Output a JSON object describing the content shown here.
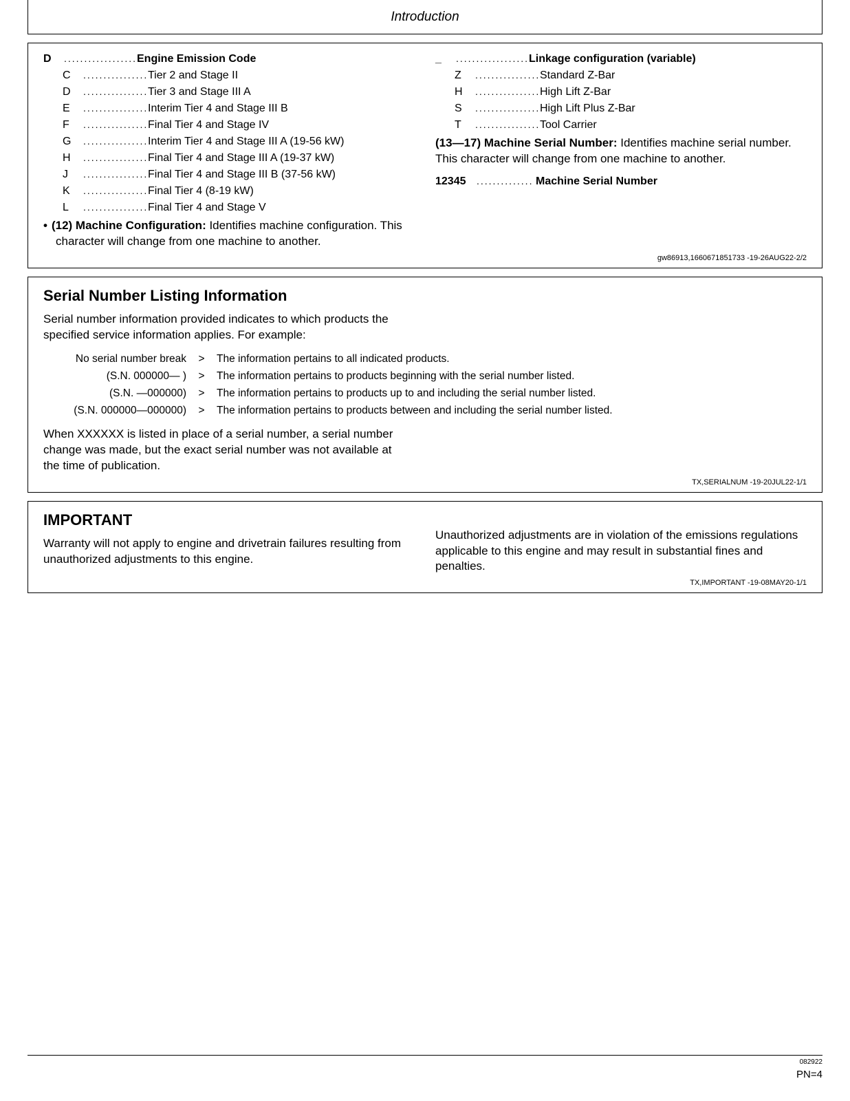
{
  "page": {
    "header": "Introduction",
    "footer_small": "082922",
    "footer_pn": "PN=4"
  },
  "section1": {
    "left": {
      "header": {
        "code": "D",
        "desc": "Engine Emission Code"
      },
      "rows": [
        {
          "code": "C",
          "desc": "Tier 2 and Stage II"
        },
        {
          "code": "D",
          "desc": "Tier 3 and Stage III A"
        },
        {
          "code": "E",
          "desc": "Interim Tier 4 and Stage III B"
        },
        {
          "code": "F",
          "desc": "Final Tier 4 and Stage IV"
        },
        {
          "code": "G",
          "desc": "Interim Tier 4 and Stage III A (19-56 kW)"
        },
        {
          "code": "H",
          "desc": "Final Tier 4 and Stage III A (19-37 kW)"
        },
        {
          "code": "J",
          "desc": "Final Tier 4 and Stage III B (37-56 kW)"
        },
        {
          "code": "K",
          "desc": "Final Tier 4 (8-19 kW)"
        },
        {
          "code": "L",
          "desc": "Final Tier 4 and Stage V"
        }
      ],
      "bullet_lead": "(12) Machine Configuration:",
      "bullet_rest": " Identifies machine configuration. This character will change from one machine to another."
    },
    "right": {
      "header": {
        "code": "_",
        "desc": "Linkage configuration (variable)"
      },
      "rows": [
        {
          "code": "Z",
          "desc": "Standard Z-Bar"
        },
        {
          "code": "H",
          "desc": "High Lift Z-Bar"
        },
        {
          "code": "S",
          "desc": "High Lift Plus Z-Bar"
        },
        {
          "code": "T",
          "desc": "Tool Carrier"
        }
      ],
      "serial_lead": "(13—17) Machine Serial Number:",
      "serial_rest": " Identifies machine serial number. This character will change from one machine to another.",
      "msn": {
        "code": "12345",
        "desc": "Machine Serial Number"
      }
    },
    "footer": "gw86913,1660671851733 -19-26AUG22-2/2"
  },
  "section2": {
    "title": "Serial Number Listing Information",
    "intro": "Serial number information provided indicates to which products the specified service information applies. For example:",
    "rows": [
      {
        "label": "No serial number break",
        "desc": "The information pertains to all indicated products."
      },
      {
        "label": "(S.N. 000000— )",
        "desc": "The information pertains to products beginning with the serial number listed."
      },
      {
        "label": "(S.N. —000000)",
        "desc": "The information pertains to products up to and including the serial number listed."
      },
      {
        "label": "(S.N. 000000—000000)",
        "desc": "The information pertains to products between and including the serial number listed."
      }
    ],
    "outro": "When XXXXXX is listed in place of a serial number, a serial number change was made, but the exact serial number was not available at the time of publication.",
    "footer": "TX,SERIALNUM -19-20JUL22-1/1"
  },
  "section3": {
    "title": "IMPORTANT",
    "left": "Warranty will not apply to engine and drivetrain failures resulting from unauthorized adjustments to this engine.",
    "right": "Unauthorized adjustments are in violation of the emissions regulations applicable to this engine and may result in substantial fines and penalties.",
    "footer": "TX,IMPORTANT -19-08MAY20-1/1"
  }
}
